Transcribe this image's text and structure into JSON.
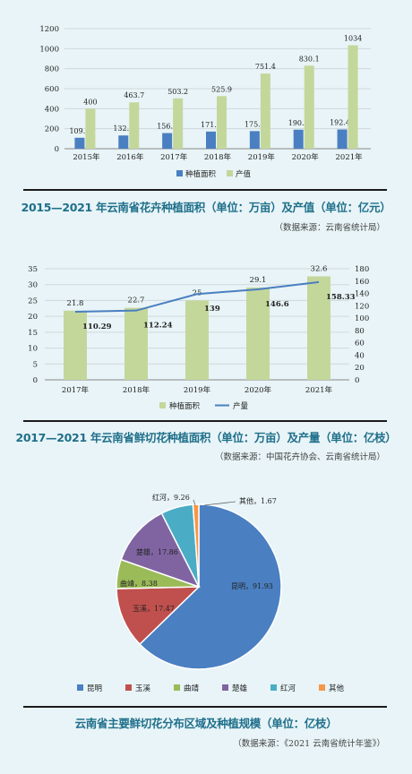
{
  "chart_data": [
    {
      "type": "bar",
      "categories": [
        "2015年",
        "2016年",
        "2017年",
        "2018年",
        "2019年",
        "2020年",
        "2021年"
      ],
      "series": [
        {
          "name": "种植面积",
          "values": [
            109.5,
            132.5,
            156.2,
            171.4,
            175.7,
            190.1,
            192.43
          ],
          "labels": [
            "109.5",
            "132.5",
            "156.2",
            "171.4",
            "175.7",
            "190.1",
            "192.43"
          ],
          "color": "#4a7fc1"
        },
        {
          "name": "产值",
          "values": [
            400,
            463.7,
            503.2,
            525.9,
            751.4,
            830.1,
            1034
          ],
          "labels": [
            "400",
            "463.7",
            "503.2",
            "525.9",
            "751.4",
            "830.1",
            "1034"
          ],
          "color": "#c4d79b"
        }
      ],
      "ylim": [
        0,
        1200
      ],
      "yticks": [
        "0",
        "200",
        "400",
        "600",
        "800",
        "1000",
        "1200"
      ],
      "grid": true,
      "legend": "bottom",
      "caption": "2015—2021 年云南省花卉种植面积（单位：万亩）及产值（单位：亿元）",
      "source": "（数据来源：云南省统计局）"
    },
    {
      "type": "bar+line",
      "categories": [
        "2017年",
        "2018年",
        "2019年",
        "2020年",
        "2021年"
      ],
      "series": [
        {
          "name": "种植面积",
          "axis": "left",
          "kind": "bar",
          "values": [
            21.8,
            22.7,
            25,
            29.1,
            32.6
          ],
          "labels": [
            "21.8",
            "22.7",
            "25",
            "29.1",
            "32.6"
          ],
          "color": "#c4d79b"
        },
        {
          "name": "产量",
          "axis": "right",
          "kind": "line",
          "values": [
            110.29,
            112.24,
            139,
            146.6,
            158.33
          ],
          "labels": [
            "110.29",
            "112.24",
            "139",
            "146.6",
            "158.33"
          ],
          "color": "#4a7fc1"
        }
      ],
      "ylim": [
        0,
        35
      ],
      "yticks": [
        "0",
        "5",
        "10",
        "15",
        "20",
        "25",
        "30",
        "35"
      ],
      "y2lim": [
        0,
        180
      ],
      "y2ticks": [
        "0",
        "20",
        "40",
        "60",
        "80",
        "100",
        "120",
        "140",
        "160",
        "180"
      ],
      "grid": true,
      "legend": "bottom",
      "caption": "2017—2021 年云南省鲜切花种植面积（单位：万亩）及产量（单位：亿枝）",
      "source": "（数据来源：中国花卉协会、云南省统计局）"
    },
    {
      "type": "pie",
      "slices": [
        {
          "name": "昆明",
          "value": 91.93,
          "label": "昆明，91.93",
          "color": "#4a7fc1"
        },
        {
          "name": "玉溪",
          "value": 17.47,
          "label": "玉溪，17.47",
          "color": "#c0504d"
        },
        {
          "name": "曲靖",
          "value": 8.38,
          "label": "曲靖，8.38",
          "color": "#9bbb59"
        },
        {
          "name": "楚雄",
          "value": 17.86,
          "label": "楚雄，17.86",
          "color": "#8064a2"
        },
        {
          "name": "红河",
          "value": 9.26,
          "label": "红河，9.26",
          "color": "#4bacc6"
        },
        {
          "name": "其他",
          "value": 1.67,
          "label": "其他，1.67",
          "color": "#f79646"
        }
      ],
      "legend": "bottom",
      "caption": "云南省主要鲜切花分布区域及种植规模（单位：亿枝）",
      "source": "（数据来源：《2021 云南省统计年鉴》）"
    }
  ]
}
